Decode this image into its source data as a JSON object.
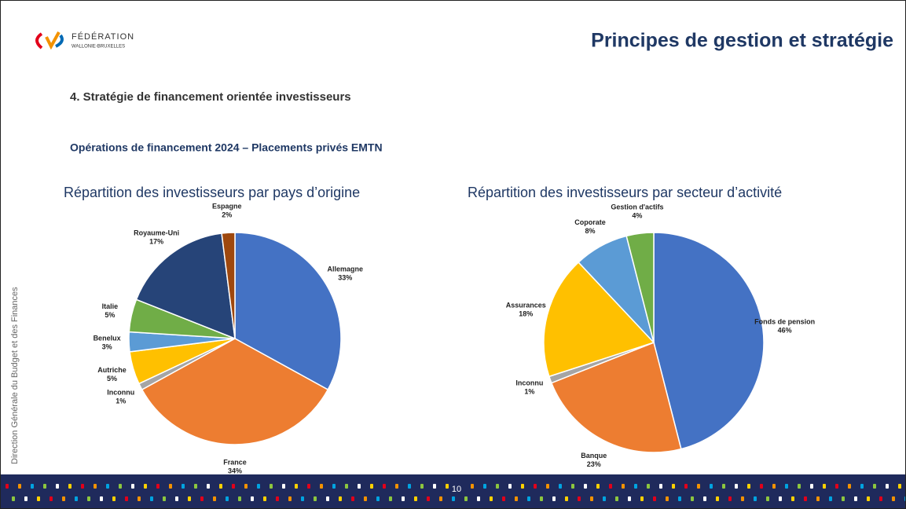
{
  "logo": {
    "line1": "FÉDÉRATION",
    "line2": "WALLONIE-BRUXELLES"
  },
  "header": {
    "title": "Principes de gestion et stratégie"
  },
  "section": "4. Stratégie de financement orientée investisseurs",
  "subsection": "Opérations de financement 2024 – Placements privés EMTN",
  "sidebar": "Direction Générale du Budget et des Finances",
  "page_number": "10",
  "chart_data": [
    {
      "type": "pie",
      "title": "Répartition des investisseurs par pays d’origine",
      "categories": [
        "Allemagne",
        "France",
        "Inconnu",
        "Autriche",
        "Benelux",
        "Italie",
        "Royaume-Uni",
        "Espagne"
      ],
      "values": [
        33,
        34,
        1,
        5,
        3,
        5,
        17,
        2
      ],
      "value_labels": [
        "33%",
        "34%",
        "1%",
        "5%",
        "3%",
        "5%",
        "17%",
        "2%"
      ],
      "colors": [
        "#4472c4",
        "#ed7d31",
        "#a5a5a5",
        "#ffc000",
        "#5b9bd5",
        "#70ad47",
        "#264478",
        "#9e480e"
      ]
    },
    {
      "type": "pie",
      "title": "Répartition des investisseurs par secteur d’activité",
      "categories": [
        "Fonds de pension",
        "Banque",
        "Inconnu",
        "Assurances",
        "Coporate",
        "Gestion d'actifs"
      ],
      "values": [
        46,
        23,
        1,
        18,
        8,
        4
      ],
      "value_labels": [
        "46%",
        "23%",
        "1%",
        "18%",
        "8%",
        "4%"
      ],
      "colors": [
        "#4472c4",
        "#ed7d31",
        "#a5a5a5",
        "#ffc000",
        "#5b9bd5",
        "#70ad47"
      ]
    }
  ]
}
